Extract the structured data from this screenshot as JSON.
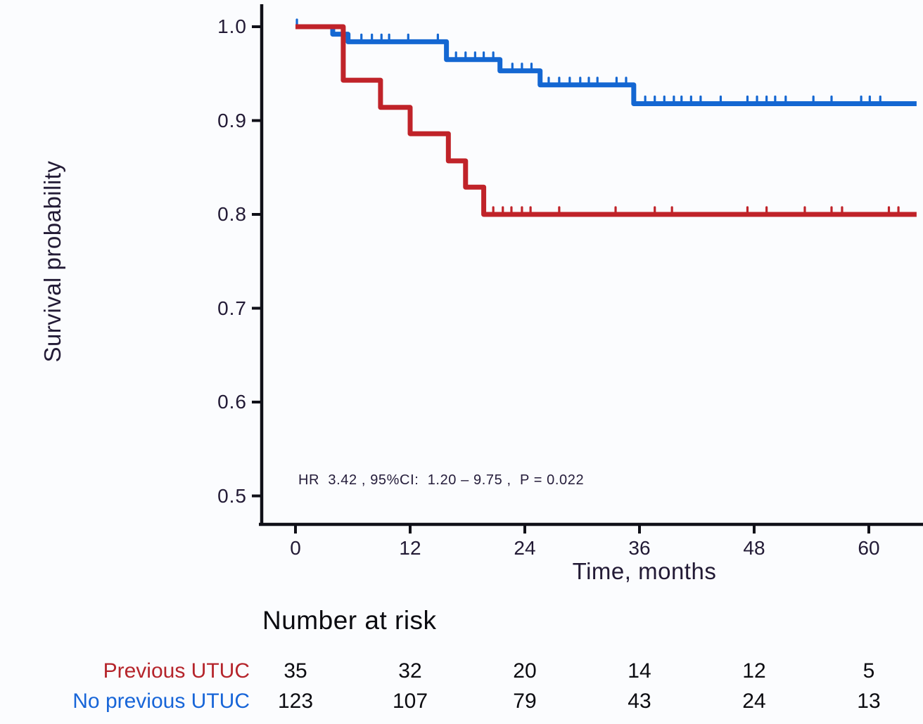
{
  "colors": {
    "background": "#fbfcfe",
    "axis": "#101018",
    "tick_text": "#221a35",
    "annotation_text": "#241c3a",
    "risk_text": "#0b0b10",
    "blue": "#1467d2",
    "red": "#c02329"
  },
  "chart_data": {
    "type": "line",
    "subtype": "kaplan-meier-step",
    "title": "",
    "xlabel": "Time, months",
    "ylabel": "Survival probability",
    "xlim": [
      0,
      65.5
    ],
    "ylim": [
      0.47,
      1.02
    ],
    "grid": false,
    "legend_position": "none",
    "xticks": [
      "0",
      "12",
      "24",
      "36",
      "48",
      "60"
    ],
    "yticks": [
      "1.0",
      "0.9",
      "0.8",
      "0.7",
      "0.6",
      "0.5"
    ],
    "annotation": "HR  3.42 , 95%CI:  1.20 – 9.75 ,  P = 0.022",
    "series": [
      {
        "name": "No previous UTUC",
        "color": "#1467d2",
        "steps": [
          [
            0,
            1.0
          ],
          [
            3.9,
            0.992
          ],
          [
            5.5,
            0.984
          ],
          [
            15.8,
            0.965
          ],
          [
            21.4,
            0.953
          ],
          [
            25.6,
            0.938
          ],
          [
            35.4,
            0.918
          ]
        ],
        "end_time": 65,
        "censor_times": [
          0.15,
          6.9,
          8.0,
          9.0,
          9.8,
          11.8,
          14.9,
          16.8,
          17.8,
          18.8,
          19.7,
          20.7,
          22.7,
          23.7,
          24.7,
          26.5,
          27.6,
          28.7,
          29.8,
          30.7,
          31.6,
          33.6,
          34.6,
          36.6,
          37.6,
          38.6,
          39.6,
          40.4,
          41.4,
          42.4,
          44.5,
          47.3,
          48.3,
          49.3,
          50.2,
          51.3,
          54.2,
          56.1,
          59.2,
          60.1,
          61.2
        ]
      },
      {
        "name": "Previous UTUC",
        "color": "#c02329",
        "steps": [
          [
            0,
            1.0
          ],
          [
            5.0,
            0.943
          ],
          [
            8.9,
            0.914
          ],
          [
            12.0,
            0.886
          ],
          [
            16.0,
            0.857
          ],
          [
            17.8,
            0.829
          ],
          [
            19.7,
            0.8
          ]
        ],
        "end_time": 65,
        "censor_times": [
          20.7,
          21.7,
          22.6,
          23.7,
          24.6,
          27.6,
          33.5,
          37.6,
          39.4,
          47.3,
          49.3,
          53.3,
          56.1,
          57.2,
          62.1,
          63.1
        ]
      }
    ],
    "risk_table": {
      "title": "Number at risk",
      "times": [
        0,
        12,
        24,
        36,
        48,
        60
      ],
      "rows": [
        {
          "label": "Previous UTUC",
          "color": "#b5242b",
          "values": [
            35,
            32,
            20,
            14,
            12,
            5
          ]
        },
        {
          "label": "No previous UTUC",
          "color": "#1765d8",
          "values": [
            123,
            107,
            79,
            43,
            24,
            13
          ]
        }
      ]
    }
  }
}
